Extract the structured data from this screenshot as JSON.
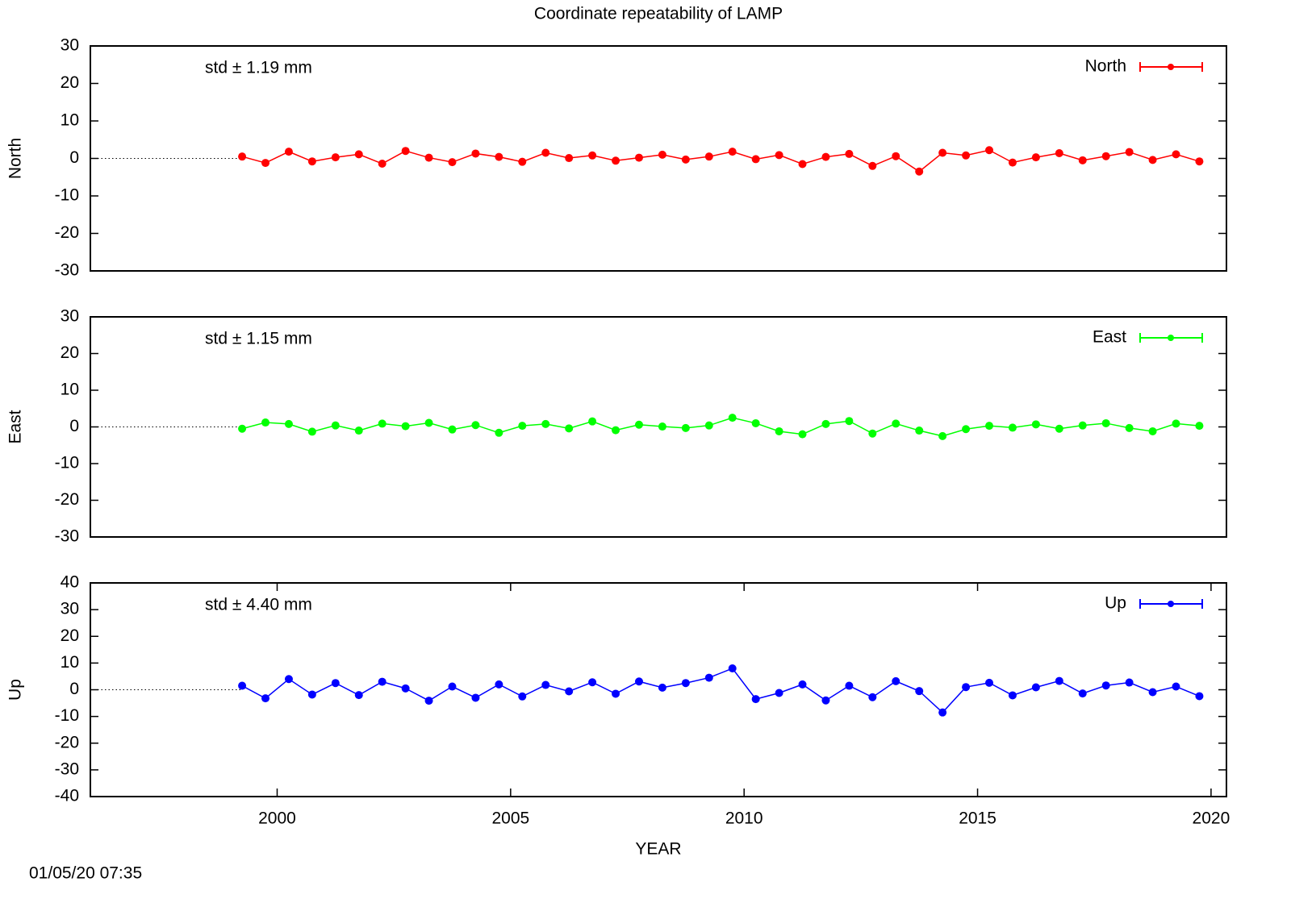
{
  "title": "Coordinate repeatability of LAMP",
  "timestamp": "01/05/20 07:35",
  "chart_data": [
    {
      "type": "line",
      "ylabel": "North",
      "annotation": "std ± 1.19 mm",
      "x": [
        1999.25,
        1999.75,
        2000.25,
        2000.75,
        2001.25,
        2001.75,
        2002.25,
        2002.75,
        2003.25,
        2003.75,
        2004.25,
        2004.75,
        2005.25,
        2005.75,
        2006.25,
        2006.75,
        2007.25,
        2007.75,
        2008.25,
        2008.75,
        2009.25,
        2009.75,
        2010.25,
        2010.75,
        2011.25,
        2011.75,
        2012.25,
        2012.75,
        2013.25,
        2013.75,
        2014.25,
        2014.75,
        2015.25,
        2015.75,
        2016.25,
        2016.75,
        2017.25,
        2017.75,
        2018.25,
        2018.75,
        2019.25,
        2019.75
      ],
      "series": [
        {
          "name": "North",
          "color": "#ff0000",
          "values": [
            0.5,
            -1.2,
            1.8,
            -0.8,
            0.3,
            1.1,
            -1.4,
            2.0,
            0.2,
            -1.0,
            1.3,
            0.4,
            -0.9,
            1.5,
            0.1,
            0.8,
            -0.6,
            0.2,
            1.0,
            -0.3,
            0.5,
            1.8,
            -0.2,
            0.9,
            -1.5,
            0.4,
            1.2,
            -2.0,
            0.6,
            -3.5,
            1.5,
            0.8,
            2.2,
            -1.1,
            0.3,
            1.4,
            -0.5,
            0.6,
            1.7,
            -0.4,
            1.1,
            -0.8
          ]
        }
      ],
      "xlim": [
        1996,
        2020.33
      ],
      "ylim": [
        -30,
        30
      ],
      "yticks": [
        -30,
        -20,
        -10,
        0,
        10,
        20,
        30
      ]
    },
    {
      "type": "line",
      "ylabel": "East",
      "annotation": "std ± 1.15 mm",
      "x": [
        1999.25,
        1999.75,
        2000.25,
        2000.75,
        2001.25,
        2001.75,
        2002.25,
        2002.75,
        2003.25,
        2003.75,
        2004.25,
        2004.75,
        2005.25,
        2005.75,
        2006.25,
        2006.75,
        2007.25,
        2007.75,
        2008.25,
        2008.75,
        2009.25,
        2009.75,
        2010.25,
        2010.75,
        2011.25,
        2011.75,
        2012.25,
        2012.75,
        2013.25,
        2013.75,
        2014.25,
        2014.75,
        2015.25,
        2015.75,
        2016.25,
        2016.75,
        2017.25,
        2017.75,
        2018.25,
        2018.75,
        2019.25,
        2019.75
      ],
      "series": [
        {
          "name": "East",
          "color": "#00ff00",
          "values": [
            -0.5,
            1.2,
            0.8,
            -1.3,
            0.4,
            -1.0,
            0.9,
            0.2,
            1.1,
            -0.7,
            0.5,
            -1.6,
            0.3,
            0.8,
            -0.4,
            1.5,
            -0.9,
            0.6,
            0.1,
            -0.3,
            0.4,
            2.5,
            1.0,
            -1.2,
            -2.0,
            0.8,
            1.6,
            -1.8,
            0.9,
            -1.0,
            -2.5,
            -0.6,
            0.3,
            -0.2,
            0.7,
            -0.5,
            0.4,
            1.0,
            -0.3,
            -1.2,
            0.9,
            0.3
          ]
        }
      ],
      "xlim": [
        1996,
        2020.33
      ],
      "ylim": [
        -30,
        30
      ],
      "yticks": [
        -30,
        -20,
        -10,
        0,
        10,
        20,
        30
      ]
    },
    {
      "type": "line",
      "ylabel": "Up",
      "xlabel": "YEAR",
      "annotation": "std ± 4.40 mm",
      "x": [
        1999.25,
        1999.75,
        2000.25,
        2000.75,
        2001.25,
        2001.75,
        2002.25,
        2002.75,
        2003.25,
        2003.75,
        2004.25,
        2004.75,
        2005.25,
        2005.75,
        2006.25,
        2006.75,
        2007.25,
        2007.75,
        2008.25,
        2008.75,
        2009.25,
        2009.75,
        2010.25,
        2010.75,
        2011.25,
        2011.75,
        2012.25,
        2012.75,
        2013.25,
        2013.75,
        2014.25,
        2014.75,
        2015.25,
        2015.75,
        2016.25,
        2016.75,
        2017.25,
        2017.75,
        2018.25,
        2018.75,
        2019.25,
        2019.75
      ],
      "series": [
        {
          "name": "Up",
          "color": "#0000ff",
          "values": [
            1.5,
            -3.2,
            4.0,
            -1.8,
            2.5,
            -2.0,
            3.0,
            0.5,
            -4.1,
            1.2,
            -3.0,
            2.0,
            -2.5,
            1.8,
            -0.6,
            2.8,
            -1.5,
            3.1,
            0.8,
            2.5,
            4.5,
            8.0,
            -3.5,
            -1.2,
            2.0,
            -4.0,
            1.5,
            -2.8,
            3.2,
            -0.5,
            -8.5,
            1.0,
            2.6,
            -2.1,
            0.9,
            3.3,
            -1.4,
            1.6,
            2.7,
            -0.9,
            1.2,
            -2.4
          ]
        }
      ],
      "xlim": [
        1996,
        2020.33
      ],
      "ylim": [
        -40,
        40
      ],
      "yticks": [
        -40,
        -30,
        -20,
        -10,
        0,
        10,
        20,
        30,
        40
      ],
      "xticks": [
        2000,
        2005,
        2010,
        2015,
        2020
      ]
    }
  ]
}
